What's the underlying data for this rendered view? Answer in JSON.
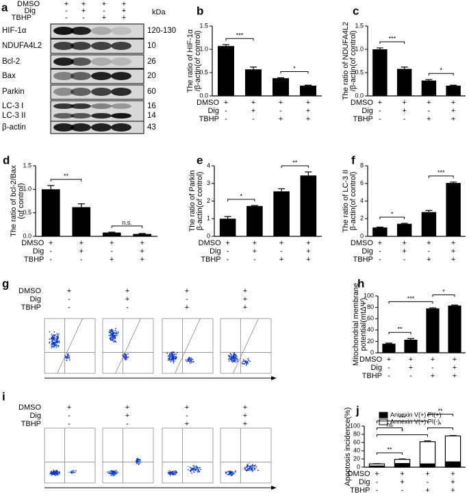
{
  "blot": {
    "letter": "a",
    "unit": "kDa",
    "treatments": [
      {
        "name": "DMSO",
        "signs": [
          "+",
          "+",
          "+",
          "+"
        ]
      },
      {
        "name": "Dig",
        "signs": [
          "-",
          "+",
          "-",
          "+"
        ]
      },
      {
        "name": "TBHP",
        "signs": [
          "-",
          "-",
          "+",
          "+"
        ]
      }
    ],
    "rows": [
      {
        "label": "HIF-1α",
        "kda": "120-130"
      },
      {
        "label": "NDUFA4L2",
        "kda": "10"
      },
      {
        "label": "Bcl-2",
        "kda": "26"
      },
      {
        "label": "Bax",
        "kda": "20"
      },
      {
        "label": "Parkin",
        "kda": "60"
      },
      {
        "label": "LC-3 I",
        "kda": "16"
      },
      {
        "label": "LC-3 II",
        "kda": "14"
      },
      {
        "label": "β-actin",
        "kda": "43"
      }
    ]
  },
  "chart_data": [
    {
      "type": "bar",
      "letter": "b",
      "ylabel": [
        "The ratio of HIF-1α",
        "/β-actin(of control)"
      ],
      "values": [
        1.07,
        0.57,
        0.38,
        0.22
      ],
      "errors": [
        0.03,
        0.05,
        0.01,
        0.01
      ],
      "color": "#000000",
      "ylim": [
        0,
        1.5
      ],
      "yticks": [
        {
          "value": 0,
          "label": "0.0"
        },
        {
          "value": 0.5,
          "label": "0.5"
        },
        {
          "value": 1,
          "label": "1.0"
        },
        {
          "value": 1.5,
          "label": "1.5"
        }
      ],
      "significance": [
        {
          "from": 0,
          "to": 1,
          "label": "***"
        },
        {
          "from": 2,
          "to": 3,
          "label": "*"
        }
      ],
      "treatments": [
        {
          "name": "DMSO",
          "signs": [
            "+",
            "+",
            "+",
            "+"
          ]
        },
        {
          "name": "Dig",
          "signs": [
            "-",
            "+",
            "-",
            "+"
          ]
        },
        {
          "name": "TBHP",
          "signs": [
            "-",
            "-",
            "+",
            "+"
          ]
        }
      ]
    },
    {
      "type": "bar",
      "letter": "c",
      "ylabel": [
        "The ratio of NDUFA4L2",
        "/β-actin(of control)"
      ],
      "values": [
        1.0,
        0.58,
        0.33,
        0.22
      ],
      "errors": [
        0.03,
        0.04,
        0.02,
        0.01
      ],
      "color": "#000000",
      "ylim": [
        0,
        1.5
      ],
      "yticks": [
        {
          "value": 0,
          "label": "0.0"
        },
        {
          "value": 0.5,
          "label": "0.5"
        },
        {
          "value": 1,
          "label": "1.0"
        },
        {
          "value": 1.5,
          "label": "1.5"
        }
      ],
      "significance": [
        {
          "from": 0,
          "to": 1,
          "label": "***"
        },
        {
          "from": 2,
          "to": 3,
          "label": "*"
        }
      ],
      "treatments": [
        {
          "name": "DMSO",
          "signs": [
            "+",
            "+",
            "+",
            "+"
          ]
        },
        {
          "name": "Dig",
          "signs": [
            "-",
            "+",
            "-",
            "+"
          ]
        },
        {
          "name": "TBHP",
          "signs": [
            "-",
            "-",
            "+",
            "+"
          ]
        }
      ]
    },
    {
      "type": "bar",
      "letter": "d",
      "ylabel": [
        "The ratio of bcl-2/Bax",
        "(of control)"
      ],
      "values": [
        1.0,
        0.62,
        0.08,
        0.05
      ],
      "errors": [
        0.08,
        0.07,
        0.01,
        0.01
      ],
      "color": "#000000",
      "ylim": [
        0,
        1.5
      ],
      "yticks": [
        {
          "value": 0,
          "label": "0.0"
        },
        {
          "value": 0.5,
          "label": "0.5"
        },
        {
          "value": 1,
          "label": "1.0"
        },
        {
          "value": 1.5,
          "label": "1.5"
        }
      ],
      "significance": [
        {
          "from": 0,
          "to": 1,
          "label": "**"
        },
        {
          "from": 2,
          "to": 3,
          "label": "n.s."
        }
      ],
      "treatments": [
        {
          "name": "DMSO",
          "signs": [
            "+",
            "+",
            "+",
            "+"
          ]
        },
        {
          "name": "Dig",
          "signs": [
            "-",
            "+",
            "-",
            "+"
          ]
        },
        {
          "name": "TBHP",
          "signs": [
            "-",
            "-",
            "+",
            "+"
          ]
        }
      ]
    },
    {
      "type": "bar",
      "letter": "e",
      "ylabel": [
        "The ratio of Parkin",
        "β-actin(of control)"
      ],
      "values": [
        1.0,
        1.72,
        2.55,
        3.45
      ],
      "errors": [
        0.12,
        0.03,
        0.15,
        0.2
      ],
      "color": "#000000",
      "ylim": [
        0,
        4
      ],
      "yticks": [
        0,
        1,
        2,
        3,
        4
      ],
      "significance": [
        {
          "from": 0,
          "to": 1,
          "label": "*"
        },
        {
          "from": 2,
          "to": 3,
          "label": "**"
        }
      ],
      "treatments": [
        {
          "name": "DMSO",
          "signs": [
            "+",
            "+",
            "+",
            "+"
          ]
        },
        {
          "name": "Dig",
          "signs": [
            "-",
            "+",
            "-",
            "+"
          ]
        },
        {
          "name": "TBHP",
          "signs": [
            "-",
            "-",
            "+",
            "+"
          ]
        }
      ]
    },
    {
      "type": "bar",
      "letter": "f",
      "ylabel": [
        "The ratio of LC-3 II",
        "β-actin(of control)"
      ],
      "values": [
        1.0,
        1.42,
        2.75,
        6.05
      ],
      "errors": [
        0.05,
        0.06,
        0.18,
        0.1
      ],
      "color": "#000000",
      "ylim": [
        0,
        8
      ],
      "yticks": [
        0,
        2,
        4,
        6,
        8
      ],
      "significance": [
        {
          "from": 0,
          "to": 1,
          "label": "*"
        },
        {
          "from": 2,
          "to": 3,
          "label": "***"
        }
      ],
      "treatments": [
        {
          "name": "DMSO",
          "signs": [
            "+",
            "+",
            "+",
            "+"
          ]
        },
        {
          "name": "Dig",
          "signs": [
            "-",
            "+",
            "-",
            "+"
          ]
        },
        {
          "name": "TBHP",
          "signs": [
            "-",
            "-",
            "+",
            "+"
          ]
        }
      ]
    },
    {
      "type": "bar",
      "letter": "h",
      "ylabel": [
        "Mitochondrial membrane",
        "potential(mtΔΨ)"
      ],
      "values": [
        16,
        23,
        78,
        83
      ],
      "errors": [
        1,
        2,
        1,
        1
      ],
      "color": "#000000",
      "ylim": [
        0,
        100
      ],
      "yticks": [
        0,
        20,
        40,
        60,
        80,
        100
      ],
      "significance": [
        {
          "from": 0,
          "to": 1,
          "label": "**"
        },
        {
          "from": 0,
          "to": 2,
          "label": "***"
        },
        {
          "from": 2,
          "to": 3,
          "label": "*"
        }
      ],
      "treatments": [
        {
          "name": "DMSO",
          "signs": [
            "+",
            "+",
            "+",
            "+"
          ]
        },
        {
          "name": "Dig",
          "signs": [
            "-",
            "+",
            "-",
            "+"
          ]
        },
        {
          "name": "TBHP",
          "signs": [
            "-",
            "-",
            "+",
            "+"
          ]
        }
      ]
    },
    {
      "type": "stacked_bar",
      "letter": "j",
      "ylabel": [
        "Apoptosis incidence(%)"
      ],
      "series": [
        {
          "name": "Annexin V(+) PI(+)",
          "color": "#000000",
          "values": [
            3,
            9,
            8,
            13
          ],
          "errors": [
            0.5,
            1,
            1,
            1
          ]
        },
        {
          "name": "Annexin V(+) PI(-)",
          "color": "#ffffff",
          "values": [
            5,
            10,
            54,
            63
          ],
          "errors": [
            0.5,
            1,
            2,
            1
          ]
        }
      ],
      "ylim": [
        0,
        100
      ],
      "yticks": [
        0,
        20,
        40,
        60,
        80,
        100
      ],
      "significance": [
        {
          "from": 0,
          "to": 1,
          "label": "**"
        },
        {
          "from": 0,
          "to": 2,
          "label": "*"
        },
        {
          "from": 2,
          "to": 3,
          "label": "*"
        },
        {
          "from": 0,
          "to": 1,
          "label": "ns"
        },
        {
          "from": 0,
          "to": 2,
          "label": "***"
        },
        {
          "from": 2,
          "to": 3,
          "label": "**"
        }
      ],
      "treatments": [
        {
          "name": "DMSO",
          "signs": [
            "+",
            "+",
            "+",
            "+"
          ]
        },
        {
          "name": "Dig",
          "signs": [
            "-",
            "+",
            "-",
            "+"
          ]
        },
        {
          "name": "TBHP",
          "signs": [
            "-",
            "-",
            "+",
            "+"
          ]
        }
      ]
    }
  ],
  "flow": [
    {
      "letter": "g",
      "treatments": [
        {
          "name": "DMSO",
          "signs": [
            "+",
            "+",
            "+",
            "+"
          ]
        },
        {
          "name": "Dig",
          "signs": [
            "-",
            "+",
            "-",
            "+"
          ]
        },
        {
          "name": "TBHP",
          "signs": [
            "-",
            "-",
            "+",
            "+"
          ]
        }
      ]
    },
    {
      "letter": "i",
      "treatments": [
        {
          "name": "DMSO",
          "signs": [
            "+",
            "+",
            "+",
            "+"
          ]
        },
        {
          "name": "Dig",
          "signs": [
            "-",
            "+",
            "-",
            "+"
          ]
        },
        {
          "name": "TBHP",
          "signs": [
            "-",
            "-",
            "+",
            "+"
          ]
        }
      ]
    }
  ]
}
